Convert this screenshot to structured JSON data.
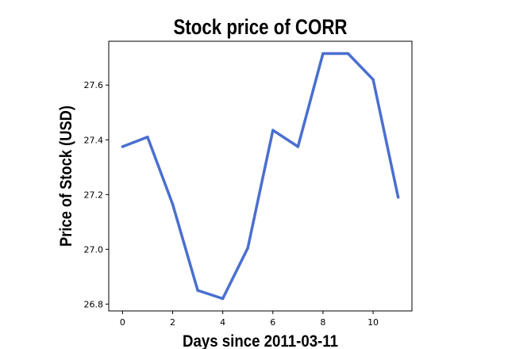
{
  "chart_data": {
    "type": "line",
    "title": "Stock price of CORR",
    "xlabel": "Days since 2011-03-11",
    "ylabel": "Price of Stock (USD)",
    "x": [
      0,
      1,
      2,
      3,
      4,
      5,
      6,
      7,
      8,
      9,
      10,
      11
    ],
    "series": [
      {
        "values": [
          27.375,
          27.41,
          27.165,
          26.85,
          26.82,
          27.005,
          27.435,
          27.375,
          27.715,
          27.715,
          27.62,
          27.19
        ]
      }
    ],
    "xlim": [
      -0.55,
      11.55
    ],
    "ylim": [
      26.775,
      27.76
    ],
    "xticks": [
      0,
      2,
      4,
      6,
      8,
      10
    ],
    "yticks": [
      26.8,
      27.0,
      27.2,
      27.4,
      27.6
    ],
    "xtick_labels": [
      "0",
      "2",
      "4",
      "6",
      "8",
      "10"
    ],
    "ytick_labels": [
      "26.8",
      "27.0",
      "27.2",
      "27.4",
      "27.6"
    ],
    "grid": false,
    "line_color": "#4a6fcf"
  }
}
